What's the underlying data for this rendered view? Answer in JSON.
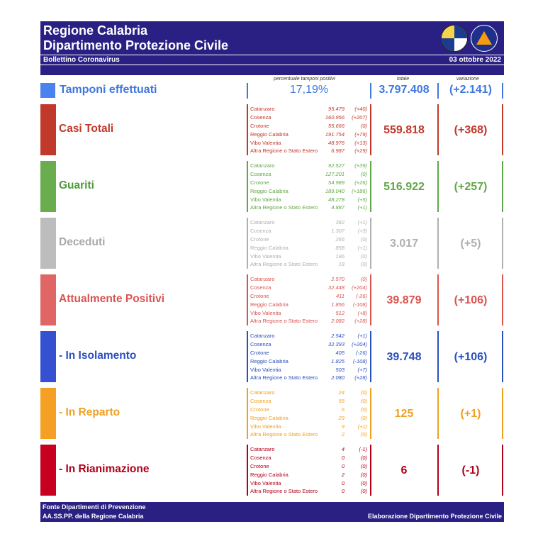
{
  "header": {
    "title1": "Regione Calabria",
    "title2": "Dipartimento Protezione Civile",
    "subtitle": "Bollettino Coronavirus",
    "date": "03 ottobre 2022"
  },
  "columns": {
    "pct": "percentuale tamponi positivi",
    "total": "totale",
    "variation": "variazione"
  },
  "tamponi": {
    "label": "Tamponi effettuati",
    "pct": "17,19%",
    "total": "3.797.408",
    "variation": "(+2.141)",
    "color": "#3f76e0"
  },
  "rows": [
    {
      "title": "Casi Totali",
      "color": "#c0392b",
      "title_color": "#c0392b",
      "bar_color": "#c0392b",
      "total": "559.818",
      "variation": "(+368)",
      "provinces": [
        {
          "name": "Catanzaro",
          "value": "95.479",
          "var": "(+40)"
        },
        {
          "name": "Cosenza",
          "value": "160.956",
          "var": "(+207)"
        },
        {
          "name": "Crotone",
          "value": "55.666",
          "var": "(0)"
        },
        {
          "name": "Reggio Calabria",
          "value": "191.754",
          "var": "(+79)"
        },
        {
          "name": "Vibo Valentia",
          "value": "48.976",
          "var": "(+13)"
        },
        {
          "name": "Altra Regione o Stato Estero",
          "value": "6.987",
          "var": "(+29)"
        }
      ]
    },
    {
      "title": "Guariti",
      "color": "#5fa845",
      "title_color": "#4f9a3a",
      "bar_color": "#6aad4e",
      "total": "516.922",
      "variation": "(+257)",
      "provinces": [
        {
          "name": "Catanzaro",
          "value": "92.527",
          "var": "(+39)"
        },
        {
          "name": "Cosenza",
          "value": "127.201",
          "var": "(0)"
        },
        {
          "name": "Crotone",
          "value": "54.989",
          "var": "(+26)"
        },
        {
          "name": "Reggio Calabria",
          "value": "189.040",
          "var": "(+186)"
        },
        {
          "name": "Vibo Valentia",
          "value": "48.278",
          "var": "(+5)"
        },
        {
          "name": "Altra Regione o Stato Estero",
          "value": "4.887",
          "var": "(+1)"
        }
      ]
    },
    {
      "title": "Deceduti",
      "color": "#b0b0b0",
      "title_color": "#a9a9a9",
      "bar_color": "#bdbdbd",
      "total": "3.017",
      "variation": "(+5)",
      "provinces": [
        {
          "name": "Catanzaro",
          "value": "382",
          "var": "(+1)"
        },
        {
          "name": "Cosenza",
          "value": "1.307",
          "var": "(+3)"
        },
        {
          "name": "Crotone",
          "value": "266",
          "var": "(0)"
        },
        {
          "name": "Reggio Calabria",
          "value": "858",
          "var": "(+1)"
        },
        {
          "name": "Vibo Valentia",
          "value": "186",
          "var": "(0)"
        },
        {
          "name": "Altra Regione o Stato Estero",
          "value": "18",
          "var": "(0)"
        }
      ]
    },
    {
      "title": "Attualmente Positivi",
      "color": "#d9534f",
      "title_color": "#d9534f",
      "bar_color": "#e06666",
      "total": "39.879",
      "variation": "(+106)",
      "provinces": [
        {
          "name": "Catanzaro",
          "value": "2.570",
          "var": "(0)"
        },
        {
          "name": "Cosenza",
          "value": "32.448",
          "var": "(+204)"
        },
        {
          "name": "Crotone",
          "value": "411",
          "var": "(-26)"
        },
        {
          "name": "Reggio Calabria",
          "value": "1.856",
          "var": "(-108)"
        },
        {
          "name": "Vibo Valentia",
          "value": "512",
          "var": "(+8)"
        },
        {
          "name": "Altra Regione o Stato Estero",
          "value": "2.082",
          "var": "(+28)"
        }
      ]
    },
    {
      "title": "- In Isolamento",
      "color": "#2a4fbf",
      "title_color": "#2a4fbf",
      "bar_color": "#3551d1",
      "total": "39.748",
      "variation": "(+106)",
      "provinces": [
        {
          "name": "Catanzaro",
          "value": "2.542",
          "var": "(+1)"
        },
        {
          "name": "Cosenza",
          "value": "32.393",
          "var": "(+204)"
        },
        {
          "name": "Crotone",
          "value": "405",
          "var": "(-26)"
        },
        {
          "name": "Reggio Calabria",
          "value": "1.825",
          "var": "(-108)"
        },
        {
          "name": "Vibo Valentia",
          "value": "503",
          "var": "(+7)"
        },
        {
          "name": "Altra Regione o Stato Estero",
          "value": "2.080",
          "var": "(+28)"
        }
      ]
    },
    {
      "title": "- In Reparto",
      "color": "#f0a020",
      "title_color": "#f0a020",
      "bar_color": "#f5a025",
      "total": "125",
      "variation": "(+1)",
      "provinces": [
        {
          "name": "Catanzaro",
          "value": "24",
          "var": "(0)"
        },
        {
          "name": "Cosenza",
          "value": "55",
          "var": "(0)"
        },
        {
          "name": "Crotone",
          "value": "6",
          "var": "(0)"
        },
        {
          "name": "Reggio Calabria",
          "value": "29",
          "var": "(0)"
        },
        {
          "name": "Vibo Valentia",
          "value": "9",
          "var": "(+1)"
        },
        {
          "name": "Altra Regione o Stato Estero",
          "value": "2",
          "var": "(0)"
        }
      ]
    },
    {
      "title": "- In Rianimazione",
      "color": "#b0001a",
      "title_color": "#b0001a",
      "bar_color": "#c8001f",
      "total": "6",
      "variation": "(-1)",
      "provinces": [
        {
          "name": "Catanzaro",
          "value": "4",
          "var": "(-1)"
        },
        {
          "name": "Cosenza",
          "value": "0",
          "var": "(0)"
        },
        {
          "name": "Crotone",
          "value": "0",
          "var": "(0)"
        },
        {
          "name": "Reggio Calabria",
          "value": "2",
          "var": "(0)"
        },
        {
          "name": "Vibo Valentia",
          "value": "0",
          "var": "(0)"
        },
        {
          "name": "Altra Regione o Stato Estero",
          "value": "0",
          "var": "(0)"
        }
      ]
    }
  ],
  "footer": {
    "line1": "Fonte Dipartimenti di Prevenzione",
    "line2": "AA.SS.PP.  della Regione Calabria",
    "right": "Elaborazione Dipartimento Protezione Civile"
  }
}
